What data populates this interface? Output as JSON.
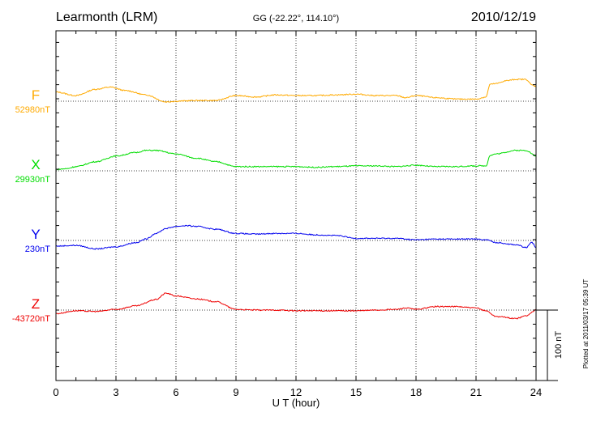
{
  "chart_data": {
    "type": "line",
    "title": "Learmonth (LRM)",
    "subtitle": "GG (-22.22°, 114.10°)",
    "date": "2010/12/19",
    "xlabel": "U T (hour)",
    "xlim": [
      0,
      24
    ],
    "xticks": [
      "0",
      "3",
      "6",
      "9",
      "12",
      "15",
      "18",
      "21",
      "24"
    ],
    "grid": "dotted at 3-hour intervals and component baselines",
    "scale_bar_label": "100 nT",
    "footer": "Plotted at 2011/03/17 05:39 UT",
    "units": "nT offset from baseline",
    "series": [
      {
        "name": "F",
        "baseline_label": "52980nT",
        "color": "#ffaa00",
        "hours": [
          0,
          1,
          2,
          2.7,
          3.5,
          4.5,
          5.5,
          6,
          7,
          8,
          9,
          10,
          11,
          12,
          13,
          14,
          15,
          16,
          17,
          17.5,
          18,
          19,
          20,
          21,
          21.5,
          21.7,
          22,
          22.5,
          23,
          23.5,
          23.8,
          24
        ],
        "values": [
          13,
          8,
          17,
          20,
          15,
          9,
          -1,
          0,
          1,
          1,
          8,
          6,
          9,
          8,
          8,
          9,
          10,
          8,
          8,
          5,
          8,
          5,
          3,
          3,
          6,
          24,
          25,
          29,
          31,
          31,
          23,
          21
        ]
      },
      {
        "name": "X",
        "baseline_label": "29930nT",
        "color": "#00dd00",
        "hours": [
          0,
          0.5,
          1,
          2,
          3,
          4,
          4.5,
          5,
          6,
          7,
          8,
          9,
          10,
          11,
          12,
          13,
          14,
          15,
          16,
          17,
          18,
          19,
          20,
          21,
          21.5,
          21.7,
          22,
          23,
          23.5,
          24
        ],
        "values": [
          2,
          3,
          6,
          13,
          21,
          26,
          29,
          29,
          24,
          18,
          13,
          6,
          6,
          6,
          6,
          5,
          6,
          7,
          7,
          6,
          8,
          6,
          6,
          7,
          7,
          22,
          24,
          29,
          29,
          21
        ]
      },
      {
        "name": "Y",
        "baseline_label": "230nT",
        "color": "#0000ee",
        "hours": [
          0,
          1,
          2,
          3,
          4,
          4.5,
          5,
          5.5,
          6,
          6.5,
          7,
          8,
          9,
          10,
          11,
          12,
          13,
          14,
          15,
          16,
          17,
          18,
          19,
          20,
          21,
          21.5,
          22,
          23,
          23.5,
          23.8,
          24
        ],
        "values": [
          -8,
          -7,
          -12,
          -9,
          -3,
          2,
          10,
          17,
          20,
          21,
          20,
          16,
          10,
          9,
          10,
          10,
          8,
          7,
          3,
          3,
          3,
          1,
          2,
          2,
          2,
          1,
          -3,
          -6,
          -10,
          -3,
          -10
        ]
      },
      {
        "name": "Z",
        "baseline_label": "-43720nT",
        "color": "#ee0000",
        "hours": [
          0,
          1,
          2,
          3,
          4,
          5,
          5.5,
          6,
          7,
          8,
          9,
          10,
          11,
          12,
          13,
          14,
          15,
          16,
          17,
          17.5,
          18,
          19,
          20,
          21,
          21.5,
          22,
          23,
          23.5,
          24
        ],
        "values": [
          -5,
          -1,
          -2,
          1,
          6,
          15,
          24,
          20,
          16,
          12,
          1,
          0,
          0,
          -1,
          -1,
          -1,
          -1,
          0,
          1,
          3,
          1,
          5,
          5,
          3,
          -1,
          -9,
          -12,
          -8,
          0
        ]
      }
    ]
  }
}
